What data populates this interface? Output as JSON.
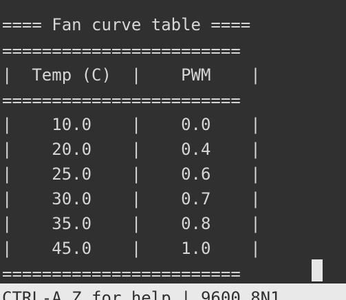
{
  "terminal": {
    "title_line": "==== Fan curve table ====",
    "rule": "========================",
    "header_line": "|  Temp (C)  |    PWM    |",
    "rows": [
      {
        "temp": "10.0",
        "pwm": "0.0"
      },
      {
        "temp": "20.0",
        "pwm": "0.4"
      },
      {
        "temp": "25.0",
        "pwm": "0.6"
      },
      {
        "temp": "30.0",
        "pwm": "0.7"
      },
      {
        "temp": "35.0",
        "pwm": "0.8"
      },
      {
        "temp": "45.0",
        "pwm": "1.0"
      }
    ],
    "status_bar": "CTRL-A Z for help | 9600 8N1"
  },
  "colors": {
    "background": "#303030",
    "foreground": "#d6d6d6",
    "status_bar_bg": "#e9e9e9",
    "status_bar_fg": "#303030",
    "cursor": "#e6e6e6"
  }
}
